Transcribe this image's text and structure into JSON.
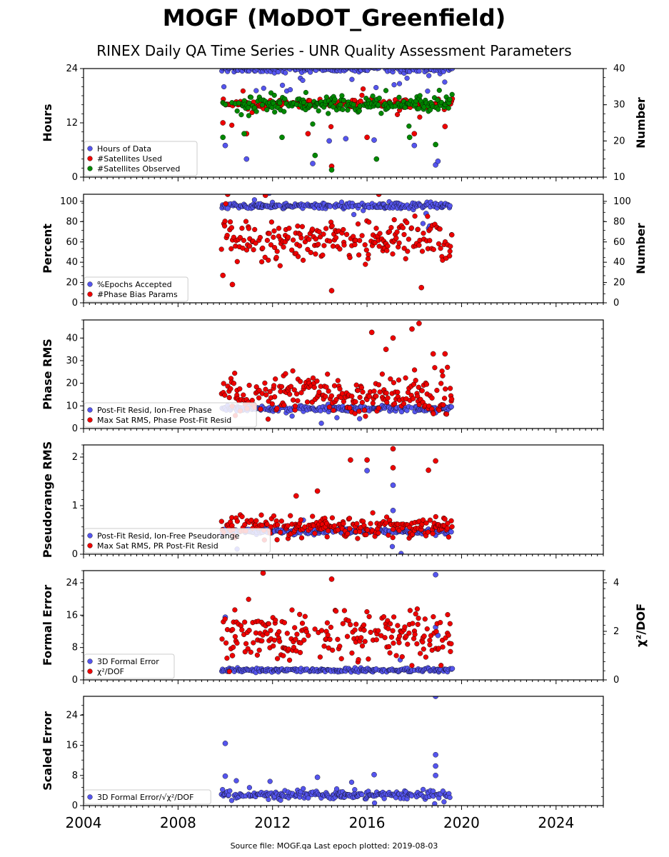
{
  "figure": {
    "title": "MOGF (MoDOT_Greenfield)",
    "subtitle": "RINEX Daily QA Time Series - UNR Quality Assessment Parameters",
    "footer": "Source file: MOGF.qa Last epoch plotted: 2019-08-03",
    "x_ticks": [
      "2004",
      "2008",
      "2012",
      "2016",
      "2020",
      "2024"
    ],
    "colors": {
      "blue": "#5555ee",
      "red": "#ee0000",
      "green": "#008800",
      "edge": "#000000"
    }
  },
  "chart_data": [
    {
      "type": "scatter",
      "ylabel": "Hours",
      "ylabel_right": "Number",
      "xlim": [
        2004,
        2026
      ],
      "ylim": [
        0,
        24
      ],
      "yticks": [
        "0",
        "12",
        "24"
      ],
      "ylim_right": [
        10,
        40
      ],
      "yticks_right": [
        "10",
        "20",
        "30",
        "40"
      ],
      "legend_placement": "lower-left",
      "legend": [
        "Hours of Data",
        "#Satellites Used",
        "#Satellites Observed"
      ],
      "series": [
        {
          "name": "Hours of Data",
          "color": "#5555ee",
          "axis": "left",
          "baseline": 23.9,
          "spread": 0.4,
          "outlier_rate": 0.08,
          "outliers": [
            [
              2010.0,
              7.0
            ],
            [
              2010.9,
              4.0
            ],
            [
              2013.7,
              3.0
            ],
            [
              2014.4,
              8.0
            ],
            [
              2015.1,
              8.5
            ],
            [
              2016.3,
              8.2
            ],
            [
              2018.0,
              7.0
            ],
            [
              2018.9,
              2.7
            ],
            [
              2019.0,
              3.5
            ]
          ]
        },
        {
          "name": "#Satellites Used",
          "color": "#ee0000",
          "axis": "right",
          "baseline": 30.2,
          "spread": 0.6,
          "outlier_rate": 0.05,
          "outliers": [
            [
              2009.9,
              25.0
            ],
            [
              2010.9,
              22.0
            ],
            [
              2013.5,
              22.0
            ],
            [
              2014.5,
              13.0
            ],
            [
              2016.0,
              21.0
            ],
            [
              2018.0,
              22.0
            ],
            [
              2019.3,
              24.0
            ]
          ]
        },
        {
          "name": "#Satellites Observed",
          "color": "#008800",
          "axis": "right",
          "baseline": 30.0,
          "spread": 1.0,
          "outlier_rate": 0.07,
          "outliers": [
            [
              2009.9,
              21.0
            ],
            [
              2010.8,
              22.0
            ],
            [
              2012.4,
              21.0
            ],
            [
              2013.8,
              16.0
            ],
            [
              2014.5,
              12.0
            ],
            [
              2016.4,
              15.0
            ],
            [
              2017.8,
              21.0
            ],
            [
              2018.9,
              19.0
            ]
          ]
        }
      ]
    },
    {
      "type": "scatter",
      "ylabel": "Percent",
      "ylabel_right": "Number",
      "xlim": [
        2004,
        2026
      ],
      "ylim": [
        0,
        107
      ],
      "yticks": [
        "0",
        "20",
        "40",
        "60",
        "80",
        "100"
      ],
      "ylim_right": [
        0,
        107
      ],
      "yticks_right": [
        "0",
        "20",
        "40",
        "60",
        "80",
        "100"
      ],
      "legend_placement": "lower-left",
      "legend": [
        "%Epochs Accepted",
        "#Phase Bias Params"
      ],
      "series": [
        {
          "name": "%Epochs Accepted",
          "color": "#5555ee",
          "axis": "left",
          "baseline": 95.5,
          "spread": 1.5,
          "outlier_rate": 0.02,
          "outliers": [
            [
              2010.1,
              93.0
            ],
            [
              2018.5,
              88.0
            ]
          ]
        },
        {
          "name": "#Phase Bias Params",
          "color": "#ee0000",
          "axis": "right",
          "baseline": 62,
          "spread": 10,
          "outlier_rate": 0.12,
          "outliers": [
            [
              2009.9,
              27.0
            ],
            [
              2010.1,
              107.0
            ],
            [
              2011.7,
              106.0
            ],
            [
              2014.5,
              12.0
            ],
            [
              2016.5,
              107.0
            ],
            [
              2018.3,
              15.0
            ],
            [
              2010.3,
              18.0
            ]
          ]
        }
      ]
    },
    {
      "type": "scatter",
      "ylabel": "Phase RMS",
      "xlim": [
        2004,
        2026
      ],
      "ylim": [
        0,
        48
      ],
      "yticks": [
        "0",
        "10",
        "20",
        "30",
        "40"
      ],
      "legend_placement": "lower-left",
      "legend": [
        "Post-Fit Resid, Ion-Free Phase",
        "Max Sat RMS, Phase Post-Fit Resid"
      ],
      "series": [
        {
          "name": "Post-Fit Resid, Ion-Free Phase",
          "color": "#5555ee",
          "axis": "left",
          "baseline": 8.8,
          "spread": 0.6,
          "outlier_rate": 0.01,
          "outliers": [
            [
              2018.9,
              7.0
            ]
          ]
        },
        {
          "name": "Max Sat RMS, Phase Post-Fit Resid",
          "color": "#ee0000",
          "axis": "left",
          "baseline": 15,
          "spread": 4,
          "outlier_rate": 0.1,
          "outliers": [
            [
              2016.2,
              42.5
            ],
            [
              2016.8,
              35.0
            ],
            [
              2017.1,
              40.0
            ],
            [
              2017.9,
              44.0
            ],
            [
              2018.2,
              46.5
            ],
            [
              2018.8,
              33.0
            ],
            [
              2019.3,
              33.0
            ]
          ]
        }
      ]
    },
    {
      "type": "scatter",
      "ylabel": "Pseudorange RMS",
      "xlim": [
        2004,
        2026
      ],
      "ylim": [
        0,
        2.25
      ],
      "yticks": [
        "0",
        "1",
        "2"
      ],
      "legend_placement": "lower-left",
      "legend": [
        "Post-Fit Resid, Ion-Free Pseudorange",
        "Max Sat RMS, PR Post-Fit Resid"
      ],
      "series": [
        {
          "name": "Post-Fit Resid, Ion-Free Pseudorange",
          "color": "#5555ee",
          "axis": "left",
          "baseline": 0.47,
          "spread": 0.03,
          "outlier_rate": 0.01,
          "outliers": [
            [
              2016.0,
              1.72
            ],
            [
              2017.1,
              1.42
            ],
            [
              2017.1,
              0.9
            ]
          ]
        },
        {
          "name": "Max Sat RMS, PR Post-Fit Resid",
          "color": "#ee0000",
          "axis": "left",
          "baseline": 0.55,
          "spread": 0.1,
          "outlier_rate": 0.06,
          "outliers": [
            [
              2015.3,
              1.94
            ],
            [
              2016.0,
              1.94
            ],
            [
              2017.1,
              2.17
            ],
            [
              2017.1,
              1.78
            ],
            [
              2018.6,
              1.73
            ],
            [
              2018.9,
              1.92
            ],
            [
              2013.9,
              1.3
            ],
            [
              2013.0,
              1.2
            ]
          ]
        }
      ]
    },
    {
      "type": "scatter",
      "ylabel": "Formal Error",
      "ylabel_right": "χ²/DOF",
      "xlim": [
        2004,
        2026
      ],
      "ylim": [
        0,
        27
      ],
      "yticks": [
        "0",
        "8",
        "16",
        "24"
      ],
      "ylim_right": [
        0,
        4.5
      ],
      "yticks_right": [
        "0",
        "2",
        "4"
      ],
      "legend_placement": "lower-left",
      "legend": [
        "3D Formal Error",
        "χ²/DOF"
      ],
      "series": [
        {
          "name": "3D Formal Error",
          "color": "#5555ee",
          "axis": "left",
          "baseline": 2.4,
          "spread": 0.25,
          "outlier_rate": 0.02,
          "outliers": [
            [
              2010.0,
              15.5
            ],
            [
              2018.9,
              26.0
            ],
            [
              2018.9,
              13.0
            ],
            [
              2019.0,
              11.0
            ]
          ]
        },
        {
          "name": "χ²/DOF",
          "color": "#ee0000",
          "axis": "right",
          "baseline": 1.8,
          "spread": 0.5,
          "outlier_rate": 0.15,
          "outliers": [
            [
              2011.6,
              4.4
            ],
            [
              2014.5,
              4.15
            ],
            [
              2010.3,
              1.0
            ]
          ]
        }
      ]
    },
    {
      "type": "scatter",
      "ylabel": "Scaled Error",
      "xlim": [
        2004,
        2026
      ],
      "ylim": [
        0,
        29
      ],
      "yticks": [
        "0",
        "8",
        "16",
        "24"
      ],
      "legend_placement": "lower-left",
      "legend": [
        "3D Formal Error/√χ²/DOF"
      ],
      "series": [
        {
          "name": "3D Formal Error/√χ²/DOF",
          "color": "#5555ee",
          "axis": "left",
          "baseline": 2.8,
          "spread": 0.6,
          "outlier_rate": 0.04,
          "outliers": [
            [
              2010.0,
              16.5
            ],
            [
              2010.0,
              7.8
            ],
            [
              2013.9,
              7.5
            ],
            [
              2016.3,
              8.2
            ],
            [
              2018.9,
              29.0
            ],
            [
              2018.9,
              13.5
            ],
            [
              2018.9,
              10.5
            ],
            [
              2018.9,
              8.0
            ]
          ]
        }
      ]
    }
  ]
}
